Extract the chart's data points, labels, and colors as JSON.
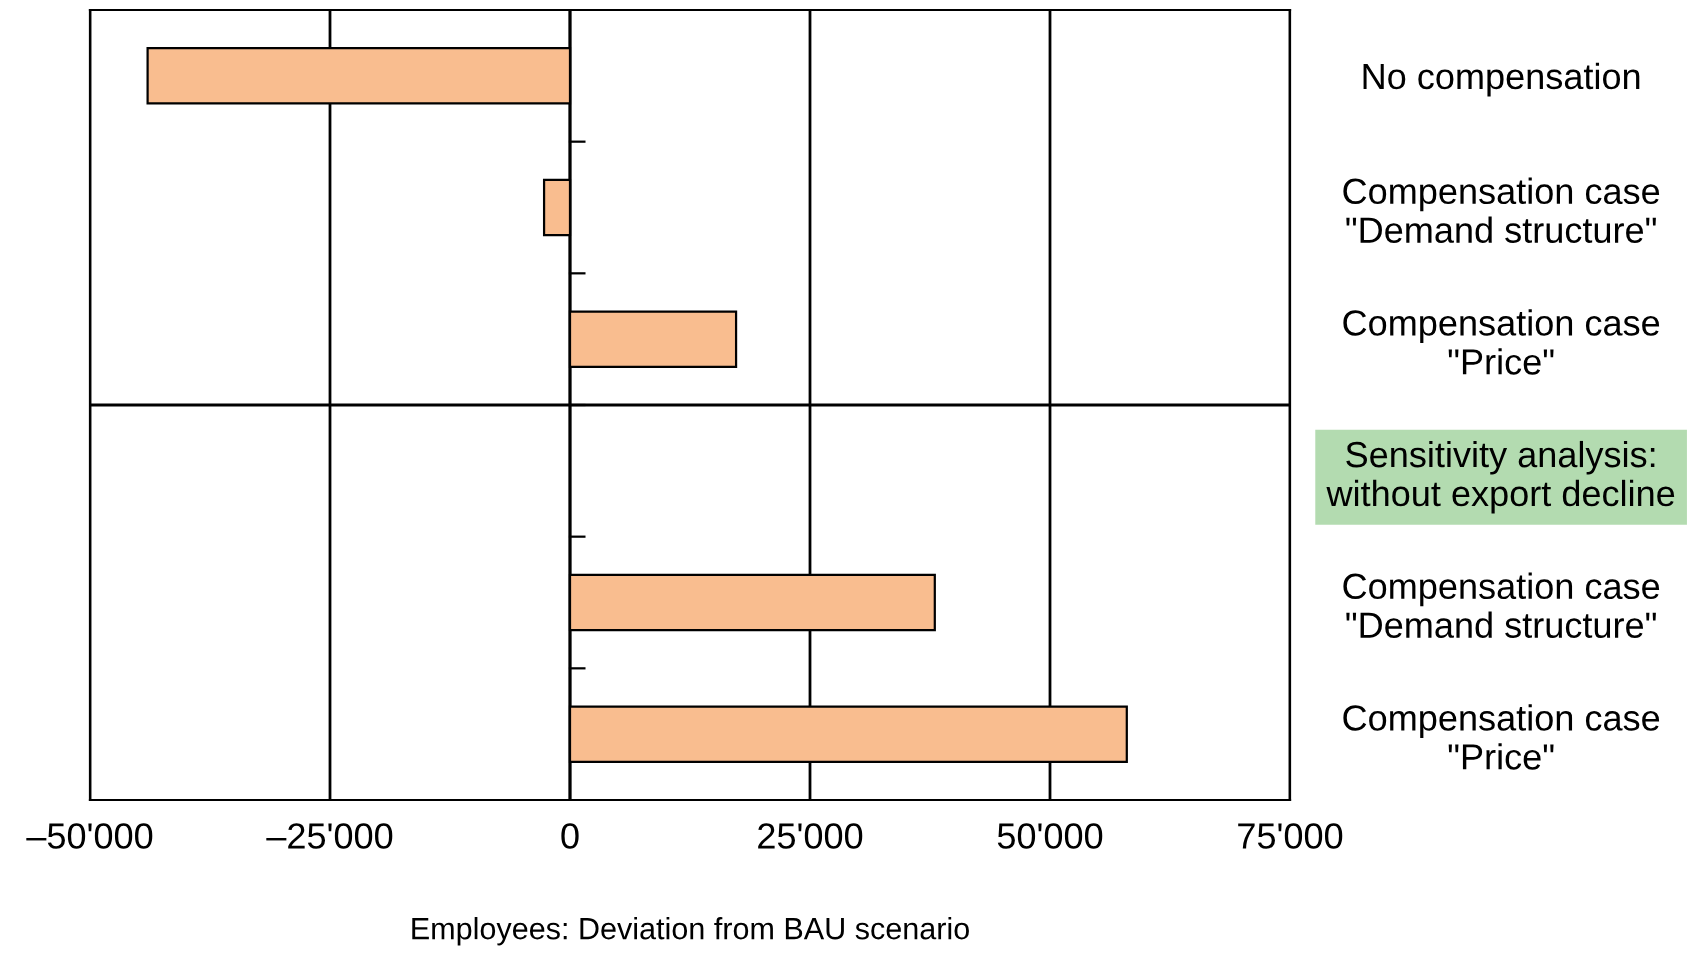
{
  "chart_data": {
    "type": "bar",
    "orientation": "horizontal",
    "xlabel": "Employees: Deviation from BAU scenario",
    "categories": [
      "No compensation",
      "Compensation case\n\"Demand structure\"",
      "Compensation case\n\"Price\"",
      "Sensitivity analysis:\nwithout export decline",
      "Compensation case\n\"Demand structure\"",
      "Compensation case\n\"Price\""
    ],
    "values": [
      -44000,
      -2700,
      17300,
      null,
      38000,
      58000
    ],
    "color": "#f9bd8f",
    "xlim": [
      -50000,
      75000
    ],
    "xticks": [
      {
        "value": -50000,
        "label": "–50'000"
      },
      {
        "value": -25000,
        "label": "–25'000"
      },
      0,
      {
        "value": 25000,
        "label": "25'000"
      },
      {
        "value": 50000,
        "label": "50'000"
      },
      {
        "value": 75000,
        "label": "75'000"
      }
    ],
    "grid": "x",
    "legend": false
  }
}
